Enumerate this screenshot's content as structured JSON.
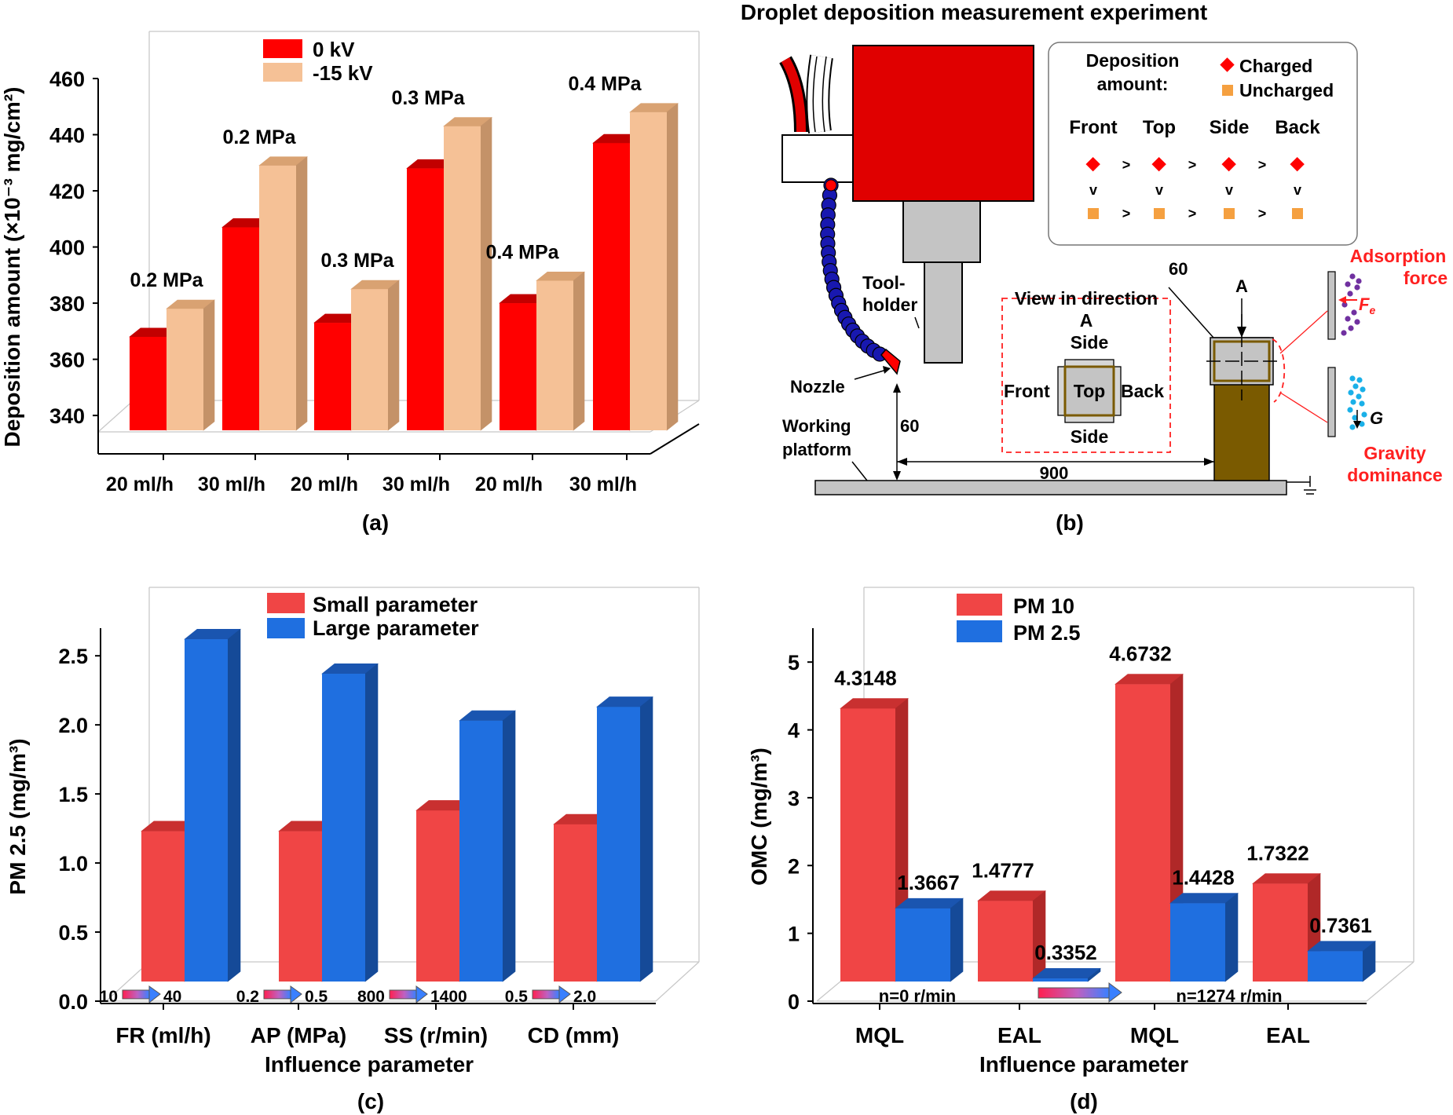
{
  "colors": {
    "red_face": "#ff0000",
    "red_top": "#c20000",
    "red_side": "#a30000",
    "peach_face": "#f5c196",
    "peach_top": "#d9a272",
    "peach_side": "#c49268",
    "pm10_face": "#f04545",
    "pm10_top": "#c93030",
    "pm10_side": "#b02828",
    "pm25_face": "#1f6fe0",
    "pm25_top": "#1a55b0",
    "pm25_side": "#154a98",
    "olive": "#7a5a00",
    "gray": "#c4c4c4",
    "navy": "#0a0aa0"
  },
  "chart_data": [
    {
      "id": "a",
      "type": "bar",
      "caption": "(a)",
      "ylabel": "Deposition amount (×10⁻³ mg/cm²)",
      "ylim": [
        335,
        460
      ],
      "yticks": [
        340,
        360,
        380,
        400,
        420,
        440,
        460
      ],
      "categories": [
        "20 ml/h",
        "30 ml/h",
        "20 ml/h",
        "30 ml/h",
        "20 ml/h",
        "30 ml/h"
      ],
      "group_labels": [
        "0.2 MPa",
        "0.2 MPa",
        "0.3 MPa",
        "0.3 MPa",
        "0.4 MPa",
        "0.4 MPa"
      ],
      "series": [
        {
          "name": "0 kV",
          "values": [
            368,
            407,
            373,
            428,
            380,
            437
          ]
        },
        {
          "name": "-15 kV",
          "values": [
            378,
            429,
            385,
            443,
            388,
            448
          ]
        }
      ],
      "legend": "top-left"
    },
    {
      "id": "c",
      "type": "bar",
      "caption": "(c)",
      "ylabel": "PM 2.5 (mg/m³)",
      "xlabel": "Influence parameter",
      "ylim": [
        0,
        2.7
      ],
      "yticks": [
        "0.0",
        "0.5",
        "1.0",
        "1.5",
        "2.0",
        "2.5"
      ],
      "categories": [
        "FR (ml/h)",
        "AP (MPa)",
        "SS (r/min)",
        "CD (mm)"
      ],
      "range_labels": [
        [
          "10",
          "40"
        ],
        [
          "0.2",
          "0.5"
        ],
        [
          "800",
          "1400"
        ],
        [
          "0.5",
          "2.0"
        ]
      ],
      "series": [
        {
          "name": "Small parameter",
          "values": [
            1.23,
            1.23,
            1.38,
            1.28
          ]
        },
        {
          "name": "Large parameter",
          "values": [
            2.62,
            2.37,
            2.03,
            2.13
          ]
        }
      ],
      "legend": "top-center"
    },
    {
      "id": "d",
      "type": "bar",
      "caption": "(d)",
      "ylabel": "OMC (mg/m³)",
      "xlabel": "Influence parameter",
      "ylim": [
        0,
        5.5
      ],
      "yticks": [
        "0",
        "1",
        "2",
        "3",
        "4",
        "5"
      ],
      "categories": [
        "MQL",
        "EAL",
        "MQL",
        "EAL"
      ],
      "speed_labels": [
        "n=0 r/min",
        "n=1274 r/min"
      ],
      "series": [
        {
          "name": "PM 10",
          "values": [
            4.3148,
            1.4777,
            4.6732,
            1.7322
          ],
          "labels": [
            "4.3148",
            "1.4777",
            "4.6732",
            "1.7322"
          ]
        },
        {
          "name": "PM 2.5",
          "values": [
            1.3667,
            0.3352,
            1.4428,
            0.7361
          ],
          "labels": [
            "1.3667",
            "0.3352",
            "1.4428",
            "0.7361"
          ]
        }
      ],
      "legend": "top-left"
    }
  ],
  "diagram_b": {
    "title": "Droplet deposition measurement experiment",
    "caption": "(b)",
    "legend_title_1": "Deposition",
    "legend_title_2": "amount:",
    "legend_charged": "Charged",
    "legend_uncharged": "Uncharged",
    "faces": [
      "Front",
      "Top",
      "Side",
      "Back"
    ],
    "gt": ">",
    "vee": "v",
    "toolholder_1": "Tool-",
    "toolholder_2": "holder",
    "nozzle": "Nozzle",
    "platform_1": "Working",
    "platform_2": "platform",
    "dim_60_vertical": "60",
    "dim_60_top": "60",
    "dim_900": "900",
    "view_1": "View in direction",
    "view_2": "A",
    "view_side_top": "Side",
    "view_side_bottom": "Side",
    "view_front": "Front",
    "view_top": "Top",
    "view_back": "Back",
    "arrow_a": "A",
    "adsorption_1": "Adsorption",
    "adsorption_2": "force",
    "fe_main": "F",
    "fe_sub": "e",
    "g_label": "G",
    "gravity_1": "Gravity",
    "gravity_2": "dominance"
  }
}
